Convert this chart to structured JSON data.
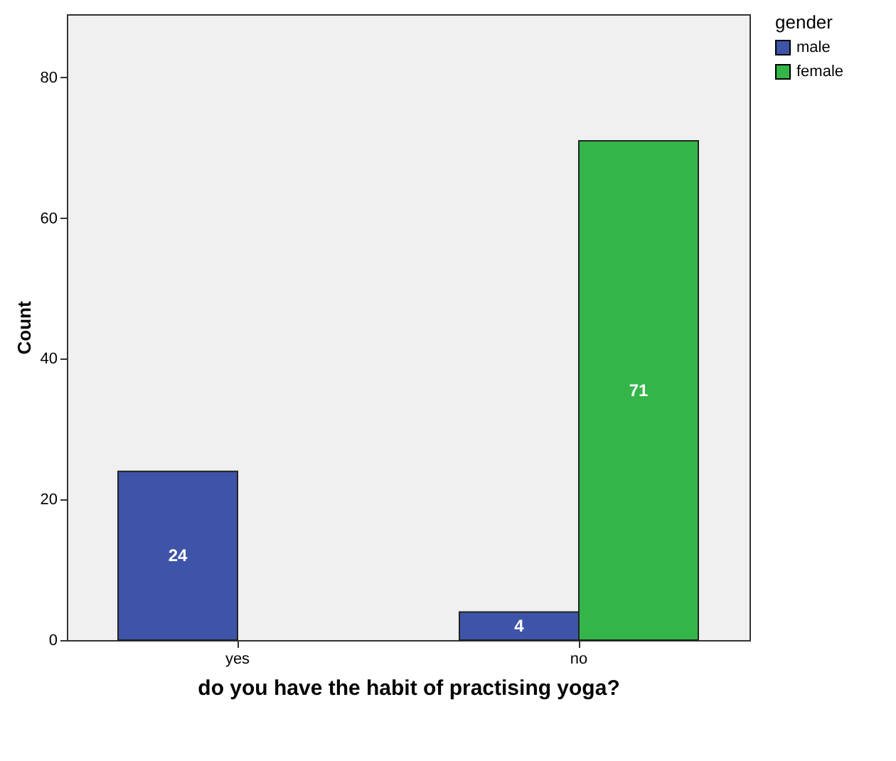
{
  "chart_data": {
    "type": "bar",
    "xlabel": "do you have the habit of practising yoga?",
    "ylabel": "Count",
    "legend_title": "gender",
    "categories": [
      "yes",
      "no"
    ],
    "series": [
      {
        "name": "male",
        "color": "#3e54a8",
        "values": [
          24,
          4
        ]
      },
      {
        "name": "female",
        "color": "#33b54a",
        "values": [
          null,
          71
        ]
      }
    ],
    "ylim": [
      0,
      89
    ],
    "yticks": [
      0,
      20,
      40,
      60,
      80
    ],
    "grid": false,
    "legend": "top right",
    "data_labels": true
  }
}
